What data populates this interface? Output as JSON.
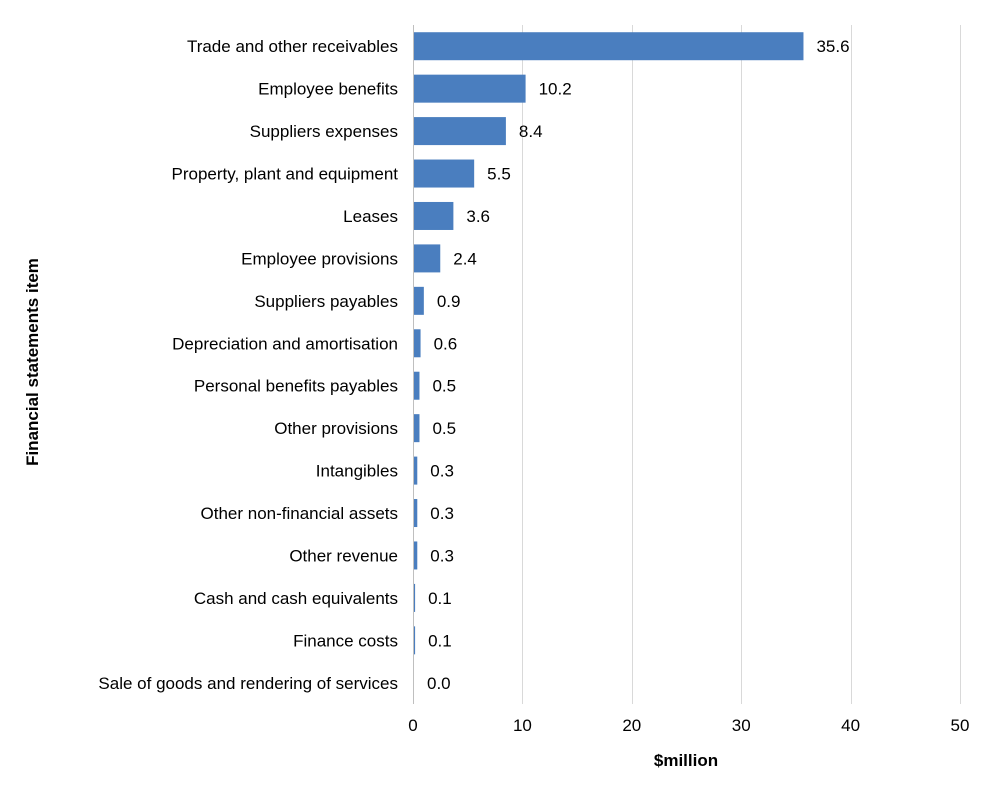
{
  "chart_data": {
    "type": "bar",
    "orientation": "horizontal",
    "categories": [
      "Trade and other receivables",
      "Employee benefits",
      "Suppliers expenses",
      "Property, plant and equipment",
      "Leases",
      "Employee provisions",
      "Suppliers payables",
      "Depreciation and amortisation",
      "Personal benefits payables",
      "Other provisions",
      "Intangibles",
      "Other non-financial assets",
      "Other revenue",
      "Cash and cash equivalents",
      "Finance costs",
      "Sale of goods and rendering of services"
    ],
    "values": [
      35.6,
      10.2,
      8.4,
      5.5,
      3.6,
      2.4,
      0.9,
      0.6,
      0.5,
      0.5,
      0.3,
      0.3,
      0.3,
      0.1,
      0.1,
      0.0
    ],
    "value_labels": [
      "35.6",
      "10.2",
      "8.4",
      "5.5",
      "3.6",
      "2.4",
      "0.9",
      "0.6",
      "0.5",
      "0.5",
      "0.3",
      "0.3",
      "0.3",
      "0.1",
      "0.1",
      "0.0"
    ],
    "xlabel": "$million",
    "ylabel": "Financial statements item",
    "xlim": [
      0,
      50
    ],
    "xticks": [
      0,
      10,
      20,
      30,
      40,
      50
    ],
    "xtick_labels": [
      "0",
      "10",
      "20",
      "30",
      "40",
      "50"
    ],
    "grid": "vertical",
    "bar_color": "#4a7ebf",
    "legend": "none"
  }
}
